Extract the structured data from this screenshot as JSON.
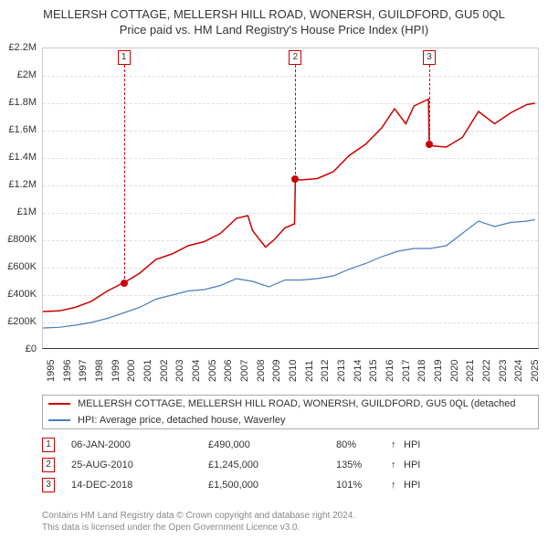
{
  "title": "MELLERSH COTTAGE, MELLERSH HILL ROAD, WONERSH, GUILDFORD, GU5 0QL",
  "subtitle": "Price paid vs. HM Land Registry's House Price Index (HPI)",
  "chart": {
    "type": "line",
    "xlim": [
      1995,
      2025.8
    ],
    "ylim": [
      0,
      2200000
    ],
    "yticks": [
      0,
      200000,
      400000,
      600000,
      800000,
      1000000,
      1200000,
      1400000,
      1600000,
      1800000,
      2000000,
      2200000
    ],
    "ytick_labels": [
      "£0",
      "£200K",
      "£400K",
      "£600K",
      "£800K",
      "£1M",
      "£1.2M",
      "£1.4M",
      "£1.6M",
      "£1.8M",
      "£2M",
      "£2.2M"
    ],
    "xticks": [
      1995,
      1996,
      1997,
      1998,
      1999,
      2000,
      2001,
      2002,
      2003,
      2004,
      2005,
      2006,
      2007,
      2008,
      2009,
      2010,
      2011,
      2012,
      2013,
      2014,
      2015,
      2016,
      2017,
      2018,
      2019,
      2020,
      2021,
      2022,
      2023,
      2024,
      2025
    ],
    "xtick_labels": [
      "1995",
      "1996",
      "1997",
      "1998",
      "1999",
      "2000",
      "2001",
      "2002",
      "2003",
      "2004",
      "2005",
      "2006",
      "2007",
      "2008",
      "2009",
      "2010",
      "2011",
      "2012",
      "2013",
      "2014",
      "2015",
      "2016",
      "2017",
      "2018",
      "2019",
      "2020",
      "2021",
      "2022",
      "2023",
      "2024",
      "2025"
    ],
    "background_color": "#ffffff",
    "grid_color": "#e0e0e0",
    "series": [
      {
        "name": "property",
        "color": "#cc0000",
        "width": 1.5,
        "points_x": [
          1995,
          1996,
          1997,
          1998,
          1999,
          2000,
          2000.02,
          2001,
          2002,
          2003,
          2004,
          2005,
          2006,
          2007,
          2007.7,
          2008,
          2008.8,
          2009.3,
          2010,
          2010.6,
          2010.65,
          2011,
          2012,
          2013,
          2014,
          2015,
          2016,
          2016.8,
          2017.5,
          2018,
          2018.9,
          2018.95,
          2019,
          2020,
          2021,
          2022,
          2023,
          2024,
          2025,
          2025.5
        ],
        "points_y": [
          280000,
          285000,
          310000,
          355000,
          430000,
          490000,
          490000,
          560000,
          660000,
          700000,
          760000,
          790000,
          850000,
          960000,
          980000,
          870000,
          750000,
          800000,
          890000,
          920000,
          1245000,
          1240000,
          1250000,
          1300000,
          1420000,
          1500000,
          1620000,
          1760000,
          1650000,
          1780000,
          1830000,
          1500000,
          1490000,
          1480000,
          1550000,
          1740000,
          1650000,
          1730000,
          1790000,
          1800000
        ]
      },
      {
        "name": "hpi",
        "color": "#4a7cbf",
        "width": 1.2,
        "points_x": [
          1995,
          1996,
          1997,
          1998,
          1999,
          2000,
          2001,
          2002,
          2003,
          2004,
          2005,
          2006,
          2007,
          2008,
          2009,
          2010,
          2011,
          2012,
          2013,
          2014,
          2015,
          2016,
          2017,
          2018,
          2019,
          2020,
          2021,
          2022,
          2023,
          2024,
          2025,
          2025.5
        ],
        "points_y": [
          160000,
          165000,
          180000,
          200000,
          230000,
          270000,
          310000,
          370000,
          400000,
          430000,
          440000,
          470000,
          520000,
          500000,
          460000,
          510000,
          510000,
          520000,
          540000,
          590000,
          630000,
          680000,
          720000,
          740000,
          740000,
          760000,
          850000,
          940000,
          900000,
          930000,
          940000,
          950000
        ]
      }
    ],
    "markers": [
      {
        "id": "1",
        "x": 2000.02,
        "y": 490000,
        "color": "#cc0000"
      },
      {
        "id": "2",
        "x": 2010.65,
        "y": 1245000,
        "color": "#cc0000"
      },
      {
        "id": "3",
        "x": 2018.95,
        "y": 1500000,
        "color": "#cc0000"
      }
    ]
  },
  "legend": {
    "items": [
      {
        "color": "#cc0000",
        "label": "MELLERSH COTTAGE, MELLERSH HILL ROAD, WONERSH, GUILDFORD, GU5 0QL (detached"
      },
      {
        "color": "#4a7cbf",
        "label": "HPI: Average price, detached house, Waverley"
      }
    ]
  },
  "transactions": [
    {
      "id": "1",
      "color": "#cc0000",
      "date": "06-JAN-2000",
      "price": "£490,000",
      "pct": "80%",
      "arrow": "↑",
      "hpi": "HPI"
    },
    {
      "id": "2",
      "color": "#cc0000",
      "date": "25-AUG-2010",
      "price": "£1,245,000",
      "pct": "135%",
      "arrow": "↑",
      "hpi": "HPI"
    },
    {
      "id": "3",
      "color": "#cc0000",
      "date": "14-DEC-2018",
      "price": "£1,500,000",
      "pct": "101%",
      "arrow": "↑",
      "hpi": "HPI"
    }
  ],
  "footer": {
    "line1": "Contains HM Land Registry data © Crown copyright and database right 2024.",
    "line2": "This data is licensed under the Open Government Licence v3.0."
  }
}
